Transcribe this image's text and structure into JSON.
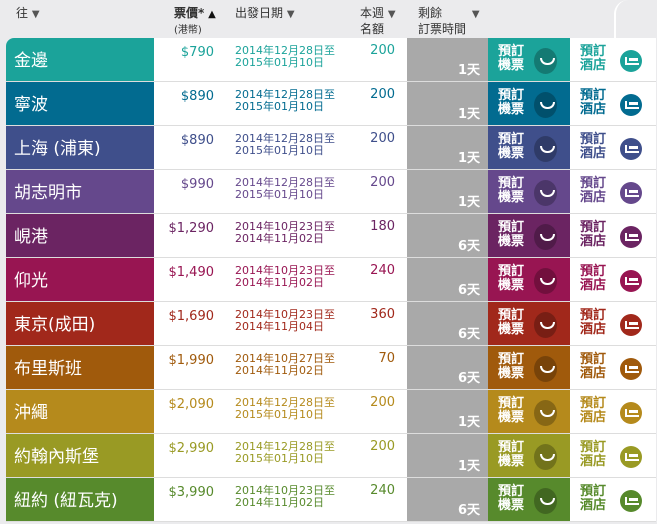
{
  "header": {
    "dest": "往",
    "price": "票價*",
    "price_unit": "(港幣)",
    "date": "出發日期",
    "quota1": "本週",
    "quota2": "名額",
    "remain1": "剩餘",
    "remain2": "訂票時間",
    "sort_down": "▼",
    "sort_up": "▲"
  },
  "labels": {
    "flight1": "預訂",
    "flight2": "機票",
    "hotel1": "預訂",
    "hotel2": "酒店"
  },
  "rows": [
    {
      "city": "金邊",
      "price": "$790",
      "from": "2014年12月28日至",
      "to": "2015年01月10日",
      "quota": "200",
      "remain": "1天",
      "color": "#1ba39a"
    },
    {
      "city": "寧波",
      "price": "$890",
      "from": "2014年12月28日至",
      "to": "2015年01月10日",
      "quota": "200",
      "remain": "1天",
      "color": "#026b90"
    },
    {
      "city": "上海 (浦東)",
      "price": "$890",
      "from": "2014年12月28日至",
      "to": "2015年01月10日",
      "quota": "200",
      "remain": "1天",
      "color": "#3f4f8b"
    },
    {
      "city": "胡志明市",
      "price": "$990",
      "from": "2014年12月28日至",
      "to": "2015年01月10日",
      "quota": "200",
      "remain": "1天",
      "color": "#65488c"
    },
    {
      "city": "峴港",
      "price": "$1,290",
      "from": "2014年10月23日至",
      "to": "2014年11月02日",
      "quota": "180",
      "remain": "6天",
      "color": "#6b2462"
    },
    {
      "city": "仰光",
      "price": "$1,490",
      "from": "2014年10月23日至",
      "to": "2014年11月02日",
      "quota": "240",
      "remain": "6天",
      "color": "#981552"
    },
    {
      "city": "東京(成田)",
      "price": "$1,690",
      "from": "2014年10月23日至",
      "to": "2014年11月04日",
      "quota": "360",
      "remain": "6天",
      "color": "#a1281b"
    },
    {
      "city": "布里斯班",
      "price": "$1,990",
      "from": "2014年10月27日至",
      "to": "2014年11月02日",
      "quota": "70",
      "remain": "6天",
      "color": "#a05a0c"
    },
    {
      "city": "沖繩",
      "price": "$2,090",
      "from": "2014年12月28日至",
      "to": "2015年01月10日",
      "quota": "200",
      "remain": "1天",
      "color": "#b58a1c"
    },
    {
      "city": "約翰內斯堡",
      "price": "$2,990",
      "from": "2014年12月28日至",
      "to": "2015年01月10日",
      "quota": "200",
      "remain": "1天",
      "color": "#999a24"
    },
    {
      "city": "紐約 (紐瓦克)",
      "price": "$3,990",
      "from": "2014年10月23日至",
      "to": "2014年11月02日",
      "quota": "240",
      "remain": "6天",
      "color": "#578a2c"
    }
  ]
}
